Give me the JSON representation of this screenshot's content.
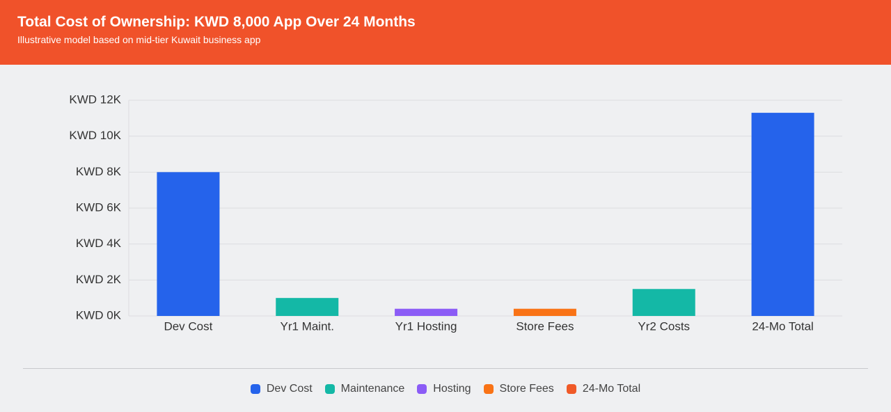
{
  "chart_data": {
    "type": "bar",
    "title": "Total Cost of Ownership: KWD 8,000 App Over 24 Months",
    "subtitle": "Illustrative model based on mid-tier Kuwait business app",
    "categories": [
      "Dev Cost",
      "Yr1 Maint.",
      "Yr1 Hosting",
      "Store Fees",
      "Yr2 Costs",
      "24-Mo Total"
    ],
    "values": [
      8000,
      1000,
      400,
      400,
      1500,
      11300
    ],
    "colors": [
      "#2563eb",
      "#14b8a6",
      "#8b5cf6",
      "#f97316",
      "#14b8a6",
      "#2563eb"
    ],
    "ylim": [
      0,
      12000
    ],
    "yticks": [
      {
        "value": 0,
        "label": "KWD 0K"
      },
      {
        "value": 2000,
        "label": "KWD 2K"
      },
      {
        "value": 4000,
        "label": "KWD 4K"
      },
      {
        "value": 6000,
        "label": "KWD 6K"
      },
      {
        "value": 8000,
        "label": "KWD 8K"
      },
      {
        "value": 10000,
        "label": "KWD 10K"
      },
      {
        "value": 12000,
        "label": "KWD 12K"
      }
    ],
    "grid": true,
    "legend": [
      {
        "name": "Dev Cost",
        "color": "#2563eb"
      },
      {
        "name": "Maintenance",
        "color": "#14b8a6"
      },
      {
        "name": "Hosting",
        "color": "#8b5cf6"
      },
      {
        "name": "Store Fees",
        "color": "#f97316"
      },
      {
        "name": "24-Mo Total",
        "color": "#f05a28"
      }
    ]
  }
}
